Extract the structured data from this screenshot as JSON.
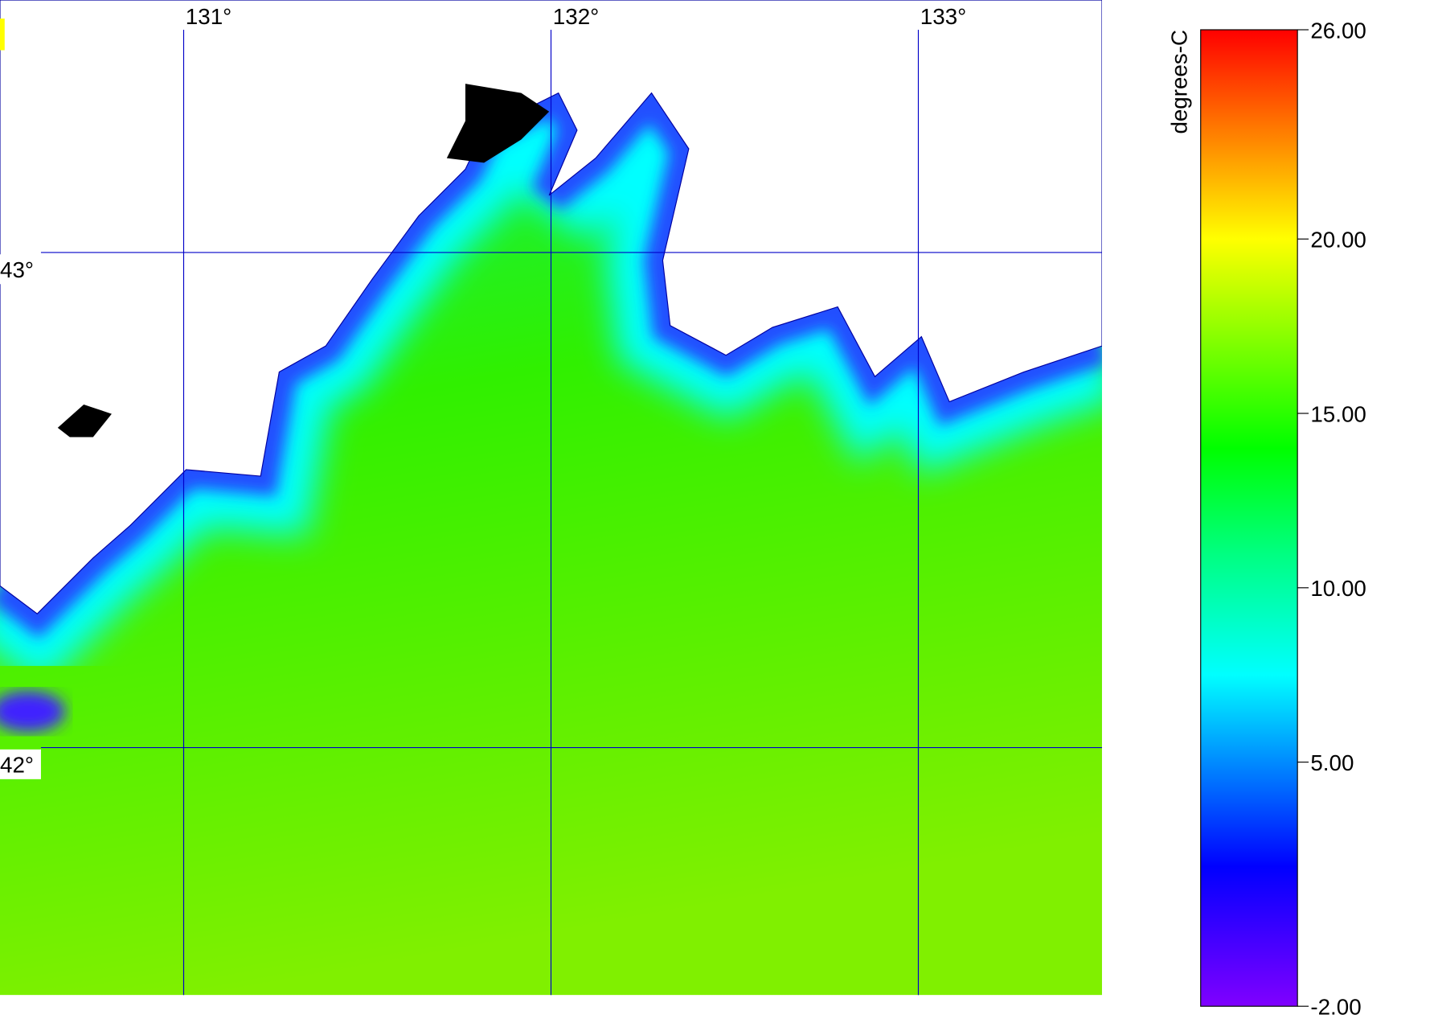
{
  "chart_data": {
    "type": "map",
    "xlim": [
      130.5,
      133.5
    ],
    "ylim": [
      41.5,
      43.51
    ],
    "xticks": [
      {
        "value": 131,
        "label": "131°"
      },
      {
        "value": 132,
        "label": "132°"
      },
      {
        "value": 133,
        "label": "133°"
      }
    ],
    "yticks": [
      {
        "value": 42,
        "label": "42°"
      },
      {
        "value": 43,
        "label": "43°"
      }
    ],
    "grid": true,
    "grid_color": "#0000c8",
    "colorbar": {
      "label": "degrees-C",
      "lim": [
        -2,
        26
      ],
      "ticks": [
        {
          "value": -2,
          "label": "-2.00"
        },
        {
          "value": 5,
          "label": "5.00"
        },
        {
          "value": 10,
          "label": "10.00"
        },
        {
          "value": 15,
          "label": "15.00"
        },
        {
          "value": 20,
          "label": "20.00"
        },
        {
          "value": 26,
          "label": "26.00"
        }
      ],
      "colormap": [
        {
          "value": -2,
          "color": "#8000ff"
        },
        {
          "value": 2,
          "color": "#0000ff"
        },
        {
          "value": 7.5,
          "color": "#00ffff"
        },
        {
          "value": 11,
          "color": "#00ff80"
        },
        {
          "value": 14,
          "color": "#00ff00"
        },
        {
          "value": 20,
          "color": "#ffff00"
        },
        {
          "value": 23,
          "color": "#ff8000"
        },
        {
          "value": 26,
          "color": "#ff0000"
        }
      ]
    }
  }
}
